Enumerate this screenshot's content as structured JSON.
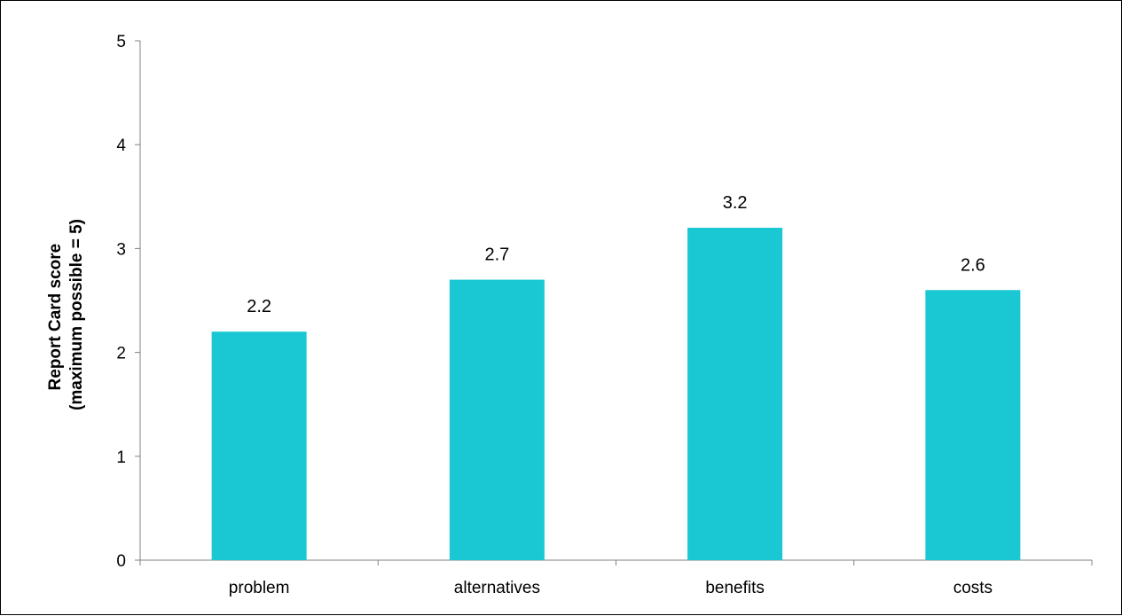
{
  "chart_data": {
    "type": "bar",
    "categories": [
      "problem",
      "alternatives",
      "benefits",
      "costs"
    ],
    "values": [
      2.2,
      2.7,
      3.2,
      2.6
    ],
    "data_labels": [
      "2.2",
      "2.7",
      "3.2",
      "2.6"
    ],
    "title": "",
    "xlabel": "",
    "ylabel_lines": [
      "Report Card score",
      "(maximum possible = 5)"
    ],
    "ylim": [
      0,
      5
    ],
    "yticks": [
      0,
      1,
      2,
      3,
      4,
      5
    ],
    "grid": false,
    "legend": "none",
    "bar_color": "#19C8D2"
  }
}
